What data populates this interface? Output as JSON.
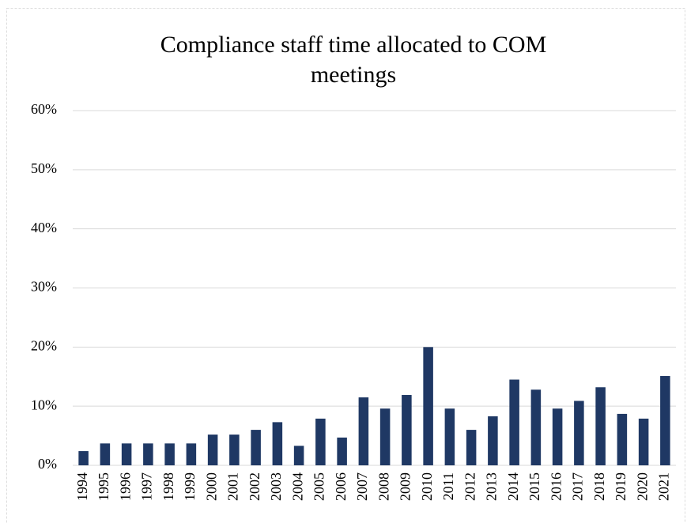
{
  "chart_data": {
    "type": "bar",
    "title": "Compliance staff time allocated to COM meetings",
    "categories": [
      "1994",
      "1995",
      "1996",
      "1997",
      "1998",
      "1999",
      "2000",
      "2001",
      "2002",
      "2003",
      "2004",
      "2005",
      "2006",
      "2007",
      "2008",
      "2009",
      "2010",
      "2011",
      "2012",
      "2013",
      "2014",
      "2015",
      "2016",
      "2017",
      "2018",
      "2019",
      "2020",
      "2021"
    ],
    "values": [
      2.4,
      3.7,
      3.7,
      3.7,
      3.7,
      3.7,
      5.2,
      5.2,
      6.0,
      7.3,
      3.3,
      7.9,
      4.7,
      11.5,
      9.6,
      11.9,
      20,
      9.6,
      6.0,
      8.3,
      14.5,
      12.8,
      9.6,
      10.9,
      13.2,
      8.7,
      7.9,
      15.1
    ],
    "color": "#1f3864",
    "ylim": [
      0,
      60
    ],
    "yticks": [
      {
        "value": 0,
        "label": "0%"
      },
      {
        "value": 10,
        "label": "10%"
      },
      {
        "value": 20,
        "label": "20%"
      },
      {
        "value": 30,
        "label": "30%"
      },
      {
        "value": 40,
        "label": "40%"
      },
      {
        "value": 50,
        "label": "50%"
      },
      {
        "value": 60,
        "label": "60%"
      }
    ],
    "grid": true
  }
}
